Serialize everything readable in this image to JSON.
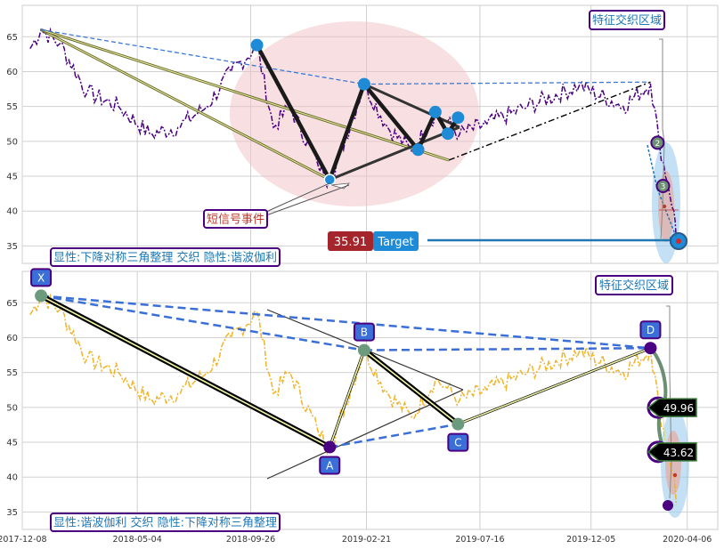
{
  "chart_data": [
    {
      "type": "line",
      "panel": "top",
      "ylim": [
        32.5,
        69.5
      ],
      "yticks": [
        "35",
        "40",
        "45",
        "50",
        "55",
        "60",
        "65"
      ],
      "x_range": [
        "2017-12-08",
        "2020-05-15"
      ],
      "grid": true,
      "colors": {
        "price": "#4b0082",
        "trend": "#3a78d8",
        "pattern": "#000000",
        "blob": "#f2c2c6"
      },
      "price": {
        "keypoints": [
          [
            "2017-12-18",
            63.3
          ],
          [
            "2018-01-01",
            66.0
          ],
          [
            "2018-01-25",
            64.0
          ],
          [
            "2018-03-01",
            57.0
          ],
          [
            "2018-04-10",
            55.0
          ],
          [
            "2018-05-20",
            51.0
          ],
          [
            "2018-06-25",
            52.0
          ],
          [
            "2018-08-01",
            55.0
          ],
          [
            "2018-09-01",
            60.0
          ],
          [
            "2018-10-04",
            63.6
          ],
          [
            "2018-10-25",
            52.0
          ],
          [
            "2018-11-15",
            55.0
          ],
          [
            "2018-12-20",
            47.0
          ],
          [
            "2019-01-05",
            44.0
          ],
          [
            "2019-02-18",
            58.2
          ],
          [
            "2019-03-20",
            52.0
          ],
          [
            "2019-04-20",
            48.5
          ],
          [
            "2019-05-20",
            54.0
          ],
          [
            "2019-06-01",
            53.0
          ],
          [
            "2019-06-20",
            51.0
          ],
          [
            "2019-07-25",
            52.5
          ],
          [
            "2019-09-15",
            55.0
          ],
          [
            "2019-11-20",
            58.0
          ],
          [
            "2020-01-15",
            55.0
          ],
          [
            "2020-02-19",
            58.3
          ],
          [
            "2020-03-01",
            50.0
          ],
          [
            "2020-03-12",
            44.0
          ],
          [
            "2020-03-20",
            40.0
          ],
          [
            "2020-03-23",
            36.0
          ]
        ]
      },
      "points": [
        {
          "name": "high-1",
          "x": "2018-10-04",
          "y": 63.8
        },
        {
          "name": "low-1",
          "x": "2019-01-05",
          "y": 44.5
        },
        {
          "name": "high-2",
          "x": "2019-02-18",
          "y": 58.2
        },
        {
          "name": "low-2",
          "x": "2019-04-28",
          "y": 48.8
        },
        {
          "name": "high-3",
          "x": "2019-05-20",
          "y": 54.2
        },
        {
          "name": "low-3",
          "x": "2019-06-05",
          "y": 51.1
        },
        {
          "name": "high-4",
          "x": "2019-06-18",
          "y": 53.4
        }
      ],
      "markers": [
        {
          "label": "2",
          "x": "2020-02-28",
          "y": 49.8
        },
        {
          "label": "3",
          "x": "2020-03-06",
          "y": 43.6
        }
      ],
      "annotations": {
        "zone_label": "特征交织区域",
        "short_signal": "短信号事件",
        "target_value": "35.91",
        "target_label": "Target",
        "caption": "显性:下降对称三角整理 交织 隐性:谐波伽利"
      }
    },
    {
      "type": "line",
      "panel": "bottom",
      "ylim": [
        32.5,
        69.5
      ],
      "yticks": [
        "35",
        "40",
        "45",
        "50",
        "55",
        "60",
        "65"
      ],
      "x_ticks": [
        "2017-12-08",
        "2018-05-04",
        "2018-09-26",
        "2019-02-21",
        "2019-07-16",
        "2019-12-05",
        "2020-04-06"
      ],
      "grid": true,
      "colors": {
        "price": "#f0b429",
        "xabcd": "#000000",
        "dashed": "#3a6fd8",
        "label_box": "#3a6fd8"
      },
      "harmonic_points": [
        {
          "label": "X",
          "x": "2018-01-01",
          "y": 66.0
        },
        {
          "label": "A",
          "x": "2019-01-05",
          "y": 44.3
        },
        {
          "label": "B",
          "x": "2019-02-18",
          "y": 58.2
        },
        {
          "label": "C",
          "x": "2019-06-18",
          "y": 47.6
        },
        {
          "label": "D",
          "x": "2020-02-19",
          "y": 58.5
        }
      ],
      "targets": [
        {
          "value": "49.96",
          "y": 49.96
        },
        {
          "value": "43.62",
          "y": 43.62
        }
      ],
      "annotations": {
        "zone_label": "特征交织区域",
        "caption": "显性:谐波伽利 交织 隐性:下降对称三角整理"
      }
    }
  ]
}
